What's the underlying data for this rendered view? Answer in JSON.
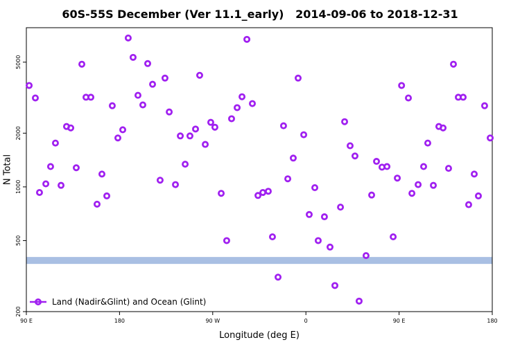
{
  "chart_data": {
    "type": "scatter",
    "title": "60S-55S December (Ver 11.1_early)   2014-09-06 to 2018-12-31",
    "x_label": "Longitude (deg E)",
    "y_label": "N Total",
    "xlim": [
      90,
      540
    ],
    "xticks": [
      {
        "value": 90,
        "label": "90 E"
      },
      180,
      {
        "value": 270,
        "label": "90 W"
      },
      {
        "value": 360,
        "label": "0"
      },
      {
        "value": 450,
        "label": "90 E"
      },
      180
    ],
    "ylim": [
      200,
      7800
    ],
    "yticks": [
      200,
      500,
      1000,
      2000,
      5000
    ],
    "y_log": true,
    "legend_position": "bottom-left",
    "reference_band": {
      "value": 387,
      "color": "#a9bfe3"
    },
    "x": [
      92.7,
      98.7,
      102.7,
      108.8,
      113.4,
      118.1,
      123.5,
      128.8,
      132.9,
      138.2,
      143.6,
      147.6,
      152.3,
      158.3,
      163.0,
      167.7,
      173.0,
      178.4,
      183.1,
      188.4,
      193.1,
      197.8,
      202.5,
      207.2,
      211.9,
      219.2,
      223.9,
      228.0,
      234.0,
      238.7,
      243.4,
      248.0,
      253.4,
      257.4,
      262.8,
      268.1,
      272.1,
      278.2,
      283.5,
      288.2,
      293.6,
      298.3,
      303.0,
      308.3,
      313.7,
      318.4,
      323.7,
      327.7,
      333.1,
      338.4,
      342.5,
      347.8,
      352.5,
      357.9,
      363.2,
      368.6,
      371.9,
      377.9,
      383.3,
      388.0,
      393.4,
      397.4,
      402.7,
      407.4,
      411.4,
      418.1,
      423.5,
      428.2,
      433.5,
      438.3,
      444.3,
      448.3,
      452.4,
      459.0,
      462.4,
      468.4,
      473.7,
      477.7,
      483.1,
      488.4,
      492.5,
      497.8,
      502.5,
      507.2,
      511.9,
      517.2,
      522.6,
      526.6,
      532.6,
      538.0
    ],
    "series": [
      {
        "name": "Land (Nadir&Glint) and Ocean (Glint)",
        "color": "#a020f0",
        "values": [
          3700,
          3150,
          930,
          1040,
          1300,
          1760,
          1020,
          2180,
          2140,
          1280,
          4870,
          3180,
          3180,
          800,
          1180,
          890,
          2850,
          1880,
          2090,
          6830,
          5320,
          3260,
          2880,
          4910,
          3760,
          1090,
          4070,
          2630,
          1030,
          1930,
          1340,
          1930,
          2110,
          4220,
          1730,
          2300,
          2160,
          920,
          500,
          2410,
          2780,
          3200,
          6710,
          2930,
          895,
          930,
          945,
          525,
          312,
          2200,
          1110,
          1450,
          4070,
          1960,
          700,
          990,
          500,
          680,
          460,
          280,
          770,
          2320,
          1700,
          1490,
          229,
          412,
          900,
          1390,
          1290,
          1300,
          525,
          1120,
          3700,
          3150,
          920,
          1030,
          1300,
          1760,
          1020,
          2180,
          2140,
          1270,
          4870,
          3180,
          3180,
          795,
          1180,
          890,
          2850,
          1880
        ]
      }
    ]
  }
}
